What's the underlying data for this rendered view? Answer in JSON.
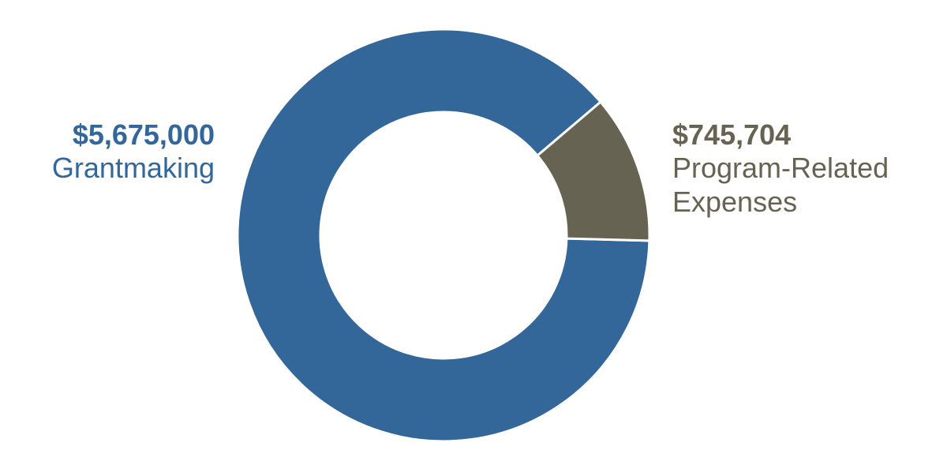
{
  "chart_data": {
    "type": "pie",
    "donut": true,
    "slices": [
      {
        "value": 5675000,
        "value_label": "$5,675,000",
        "label": "Grantmaking",
        "color": "#336699"
      },
      {
        "value": 745704,
        "value_label": "$745,704",
        "label_lines": [
          "Program-Related",
          "Expenses"
        ],
        "color": "#676352"
      }
    ],
    "legend": "none",
    "title": ""
  }
}
